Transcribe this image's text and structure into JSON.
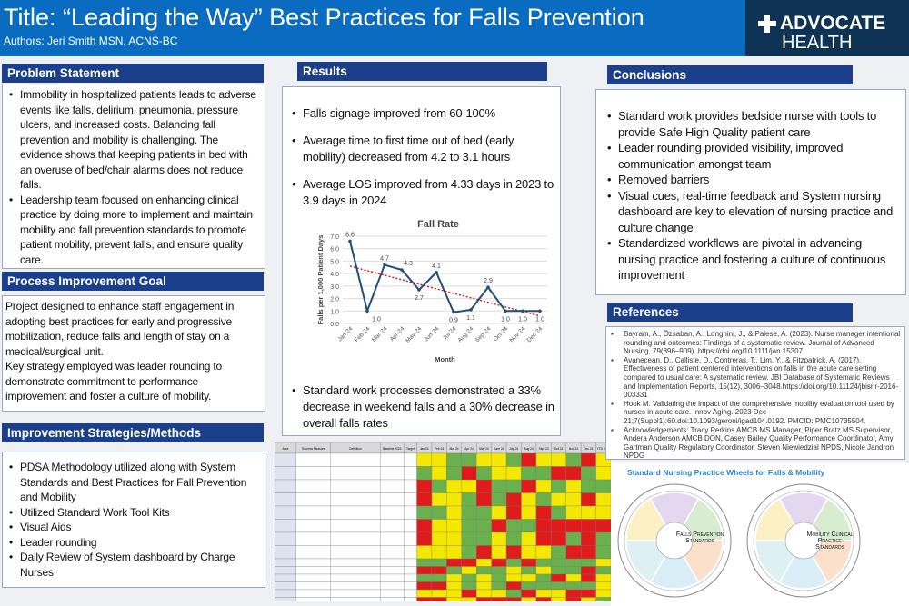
{
  "header": {
    "title": "Title: “Leading the Way” Best Practices for Falls Prevention",
    "authors": "Authors: Jeri Smith MSN, ACNS-BC",
    "logo_line1": "ADVOCATE",
    "logo_line2": "HEALTH"
  },
  "problem": {
    "heading": "Problem Statement",
    "items": [
      "Immobility in hospitalized patients leads to adverse events like falls, delirium, pneumonia, pressure ulcers, and increased costs. Balancing fall prevention and mobility is challenging. The evidence shows that keeping patients in bed with an overuse of bed/chair alarms does not reduce falls.",
      "Leadership team focused on enhancing clinical practice by doing more to implement and maintain mobility and fall prevention standards to promote patient mobility, prevent falls, and ensure quality care."
    ]
  },
  "goal": {
    "heading": "Process Improvement Goal",
    "text1": "Project designed to enhance staff engagement in adopting best practices for early and progressive mobilization, reduce falls and length of stay on a medical/surgical unit.",
    "text2": "Key strategy employed was leader rounding to demonstrate commitment to performance improvement and foster a culture of mobility."
  },
  "methods": {
    "heading": "Improvement Strategies/Methods",
    "items": [
      "PDSA Methodology utilized along with System Standards and Best Practices for Fall Prevention and Mobility",
      "Utilized Standard Work Tool Kits",
      "Visual Aids",
      "Leader rounding",
      "Daily Review of System dashboard by Charge Nurses"
    ]
  },
  "results": {
    "heading": "Results",
    "items": [
      "Falls signage improved from 60-100%",
      "Average time to first time out of bed (early mobility) decreased from 4.2 to 3.1 hours",
      "Average LOS improved from 4.33 days in 2023 to 3.9 days in 2024"
    ],
    "bottom_item": "Standard work processes demonstrated a 33% decrease in weekend falls and a 30% decrease in overall falls rates"
  },
  "chart_data": {
    "type": "line",
    "title": "Fall Rate",
    "xlabel": "Month",
    "ylabel": "Falls per 1,000 Patient Days",
    "categories": [
      "Jan-24",
      "Feb-24",
      "Mar-24",
      "Apr-24",
      "May-24",
      "Jun-24",
      "Jul-24",
      "Aug-24",
      "Sep-24",
      "Oct-24",
      "Nov-24",
      "Dec-24"
    ],
    "values": [
      6.6,
      1.0,
      4.7,
      4.3,
      2.7,
      4.1,
      0.9,
      1.1,
      2.9,
      1.0,
      1.0,
      1.0
    ],
    "yticks": [
      "0.0",
      "1.0",
      "2.0",
      "3.0",
      "4.0",
      "5.0",
      "6.0",
      "7.0"
    ],
    "ylim": [
      0,
      7
    ],
    "trendline": {
      "type": "linear",
      "start": 4.6,
      "end": 0.6
    },
    "grid": true,
    "colors": {
      "series": "#1f4e79",
      "trend": "#e02020"
    }
  },
  "table": {
    "headers": [
      "Area",
      "Success Measure",
      "Definition",
      "Baseline 2023",
      "Target",
      "Jan 24",
      "Feb 24",
      "Mar 24",
      "Apr 24",
      "May 24",
      "June 24",
      "July 24",
      "Aug 24",
      "Sept 24",
      "Oct 24",
      "Nov 24",
      "Dec 24",
      "YTD 2024"
    ]
  },
  "conclusions": {
    "heading": "Conclusions",
    "items": [
      "Standard work provides bedside nurse with tools to provide Safe High Quality patient care",
      "Leader rounding provided visibility, improved communication amongst team",
      "Removed barriers",
      "Visual cues, real-time feedback and System nursing dashboard are key to elevation of nursing practice and culture change",
      "Standardized workflows are pivotal in advancing nursing practice and fostering a culture of continuous improvement"
    ]
  },
  "references": {
    "heading": "References",
    "items": [
      "Bayram, A., Özsaban, A., Longhini, J., & Palese, A. (2023). Nurse manager intentional rounding and outcomes: Findings of a systematic review. Journal of Advanced Nursing, 79(896–909). https://doi.org/10.1111/jan.15307",
      "Avanecean, D., Calliste, D., Contreras, T., Lim, Y., & Fitzpatrick, A. (2017). Effectiveness of patient centered interventions on falls in the acute care setting compared to usual care: A systematic review. JBI Database of Systematic Reviews and Implementation Reports, 15(12), 3006–3048.https://doi.org/10.11124/jbisrir-2016-003331",
      "Hook M. Validating the impact of the comprehensive mobility evaluation tool used by nurses in acute care. Innov Aging. 2023 Dec 21;7(Suppl1):60.doi:10.1093/geroni/igad104.0192. PMCID: PMC10735504.",
      "Acknowledgements: Tracy Perkins AMCB MS Manager, Piper Bratz MS Supervisor, Andera Anderson AMCB DON, Casey Bailey Quality Performance Coordinator, Amy Gartman Quality Regulatory Coordinator, Steven Niewiedzial NPDS, Nicole Jandron NPDG"
    ]
  },
  "wheels": {
    "caption": "Standard Nursing Practice Wheels for  Falls & Mobility",
    "wheel1": "Falls Prevention Standards",
    "wheel2": "Mobility Clinical Practice Standards"
  }
}
